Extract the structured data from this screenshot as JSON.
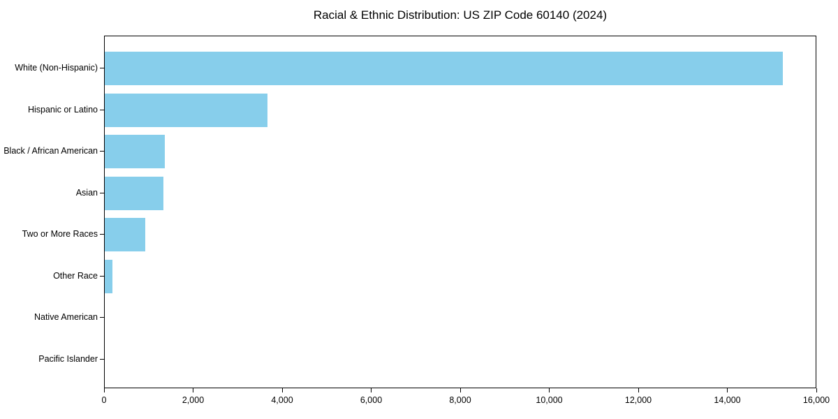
{
  "chart_data": {
    "type": "bar",
    "orientation": "horizontal",
    "title": "Racial & Ethnic Distribution: US ZIP Code 60140 (2024)",
    "categories": [
      "White (Non-Hispanic)",
      "Hispanic or Latino",
      "Black / African American",
      "Asian",
      "Two or More Races",
      "Other Race",
      "Native American",
      "Pacific Islander"
    ],
    "values": [
      15230,
      3650,
      1350,
      1320,
      910,
      180,
      0,
      0
    ],
    "xlabel": "",
    "ylabel": "",
    "xlim": [
      0,
      16000
    ],
    "xticks": [
      0,
      2000,
      4000,
      6000,
      8000,
      10000,
      12000,
      14000,
      16000
    ],
    "xtick_labels": [
      "0",
      "2,000",
      "4,000",
      "6,000",
      "8,000",
      "10,000",
      "12,000",
      "14,000",
      "16,000"
    ],
    "grid": false,
    "legend_position": "none",
    "colors": {
      "bar": "#87CEEB",
      "axis": "#000000",
      "text": "#000000",
      "background": "#FFFFFF"
    }
  }
}
